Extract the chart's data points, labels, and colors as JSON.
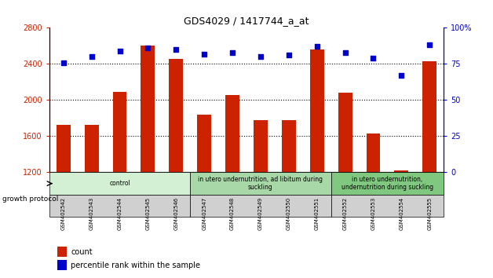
{
  "title": "GDS4029 / 1417744_a_at",
  "samples": [
    "GSM402542",
    "GSM402543",
    "GSM402544",
    "GSM402545",
    "GSM402546",
    "GSM402547",
    "GSM402548",
    "GSM402549",
    "GSM402550",
    "GSM402551",
    "GSM402552",
    "GSM402553",
    "GSM402554",
    "GSM402555"
  ],
  "counts": [
    1730,
    1730,
    2090,
    2600,
    2460,
    1840,
    2060,
    1780,
    1780,
    2560,
    2080,
    1630,
    1220,
    2430
  ],
  "percentiles": [
    76,
    80,
    84,
    86,
    85,
    82,
    83,
    80,
    81,
    87,
    83,
    79,
    67,
    88
  ],
  "ymin": 1200,
  "ymax": 2800,
  "yticks": [
    1200,
    1600,
    2000,
    2400,
    2800
  ],
  "y2min": 0,
  "y2max": 100,
  "y2ticks": [
    0,
    25,
    50,
    75,
    100
  ],
  "y2ticklabels": [
    "0",
    "25",
    "50",
    "75",
    "100%"
  ],
  "dotted_lines": [
    2400,
    2000,
    1600
  ],
  "bar_color": "#cc2200",
  "scatter_color": "#0000cc",
  "groups": [
    {
      "label": "control",
      "start": 0,
      "end": 5,
      "color": "#d4f0d4"
    },
    {
      "label": "in utero undernutrition, ad libitum during\nsuckling",
      "start": 5,
      "end": 10,
      "color": "#a8d8a8"
    },
    {
      "label": "in utero undernutrition,\nundernutrition during suckling",
      "start": 10,
      "end": 14,
      "color": "#80c880"
    }
  ],
  "legend_count_label": "count",
  "legend_pct_label": "percentile rank within the sample",
  "growth_protocol_label": "growth protocol",
  "tick_color_left": "#cc2200",
  "tick_color_right": "#0000cc"
}
